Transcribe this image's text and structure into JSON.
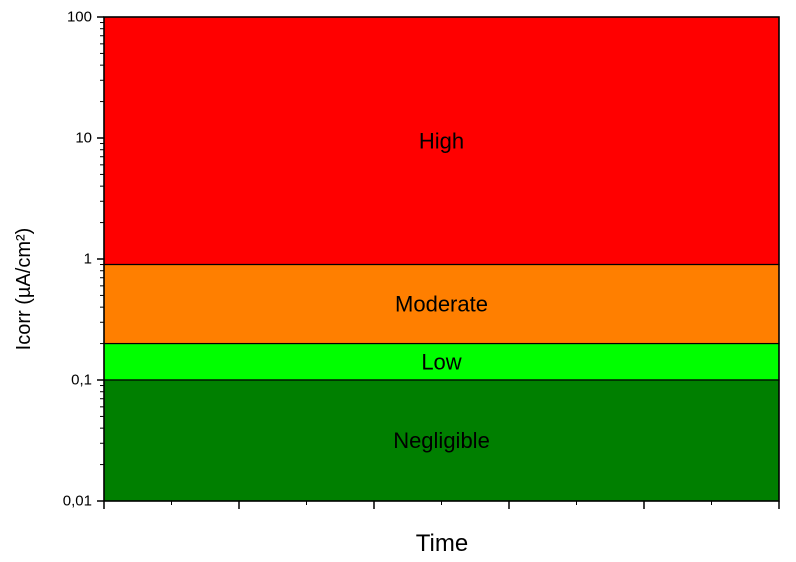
{
  "chart_data": {
    "type": "area",
    "title": "",
    "xlabel": "Time",
    "ylabel": "Icorr (µA/cm²)",
    "y_scale": "log",
    "ylim": [
      0.01,
      100
    ],
    "y_ticks": [
      {
        "value": 100,
        "label": "100"
      },
      {
        "value": 10,
        "label": "10"
      },
      {
        "value": 1,
        "label": "1"
      },
      {
        "value": 0.1,
        "label": "0,1"
      },
      {
        "value": 0.01,
        "label": "0,01"
      }
    ],
    "x_tick_labels_shown": false,
    "bands": [
      {
        "name": "High",
        "y0": 0.9,
        "y1": 100,
        "color": "#ff0000"
      },
      {
        "name": "Moderate",
        "y0": 0.2,
        "y1": 0.9,
        "color": "#ff7f00"
      },
      {
        "name": "Low",
        "y0": 0.1,
        "y1": 0.2,
        "color": "#00ff00"
      },
      {
        "name": "Negligible",
        "y0": 0.01,
        "y1": 0.1,
        "color": "#007f00"
      }
    ]
  }
}
